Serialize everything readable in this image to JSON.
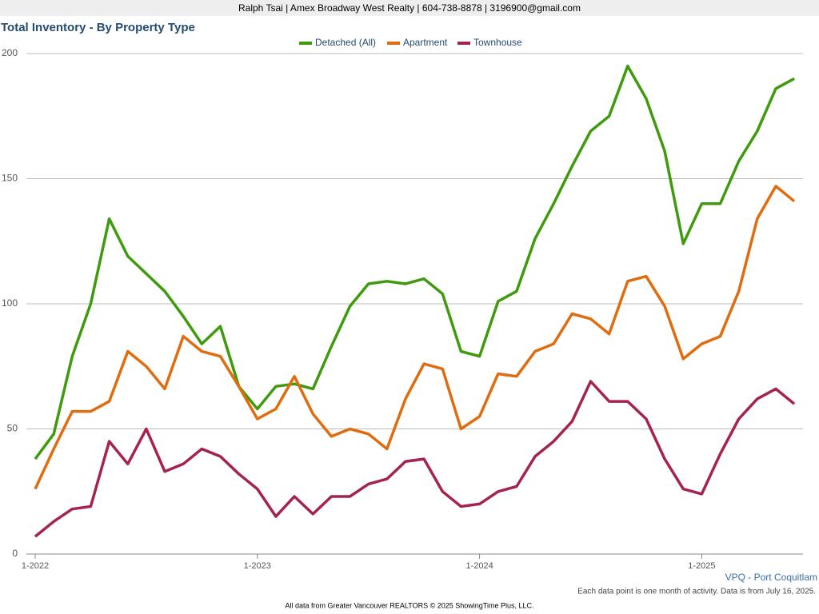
{
  "header": "Ralph Tsai | Amex Broadway West Realty | 604-738-8878 | 3196900@gmail.com",
  "chart_data": {
    "type": "line",
    "title": "Total Inventory - By Property Type",
    "categories": [
      "1-2022",
      null,
      null,
      null,
      null,
      null,
      null,
      null,
      null,
      null,
      null,
      null,
      "1-2023",
      null,
      null,
      null,
      null,
      null,
      null,
      null,
      null,
      null,
      null,
      null,
      "1-2024",
      null,
      null,
      null,
      null,
      null,
      null,
      null,
      null,
      null,
      null,
      null,
      "1-2025",
      null,
      null,
      null,
      null,
      null
    ],
    "series": [
      {
        "name": "Detached (All)",
        "color": "#3f9a0e",
        "values": [
          38,
          48,
          79,
          100,
          134,
          119,
          112,
          105,
          95,
          84,
          91,
          67,
          58,
          67,
          68,
          66,
          83,
          99,
          108,
          109,
          108,
          110,
          104,
          81,
          79,
          101,
          105,
          126,
          140,
          155,
          169,
          175,
          195,
          182,
          161,
          124,
          140,
          140,
          157,
          169,
          186,
          190
        ]
      },
      {
        "name": "Apartment",
        "color": "#e06c10",
        "values": [
          26,
          42,
          57,
          57,
          61,
          81,
          75,
          66,
          87,
          81,
          79,
          67,
          54,
          58,
          71,
          56,
          47,
          50,
          48,
          42,
          62,
          76,
          74,
          50,
          55,
          72,
          71,
          81,
          84,
          96,
          94,
          88,
          109,
          111,
          99,
          78,
          84,
          87,
          105,
          134,
          147,
          141
        ]
      },
      {
        "name": "Townhouse",
        "color": "#a5234f",
        "values": [
          7,
          13,
          18,
          19,
          45,
          36,
          50,
          33,
          36,
          42,
          39,
          32,
          26,
          15,
          23,
          16,
          23,
          23,
          28,
          30,
          37,
          38,
          25,
          19,
          20,
          25,
          27,
          39,
          45,
          53,
          69,
          61,
          61,
          54,
          38,
          26,
          24,
          40,
          54,
          62,
          66,
          60
        ]
      }
    ],
    "ylim": [
      0,
      200
    ],
    "yticks": [
      0,
      50,
      100,
      150,
      200
    ],
    "grid": true,
    "legend": "top"
  },
  "region": "VPQ - Port Coquitlam",
  "note": "Each data point is one month of activity. Data is from July 16, 2025.",
  "footer": "All data from Greater Vancouver REALTORS © 2025 ShowingTime Plus, LLC."
}
